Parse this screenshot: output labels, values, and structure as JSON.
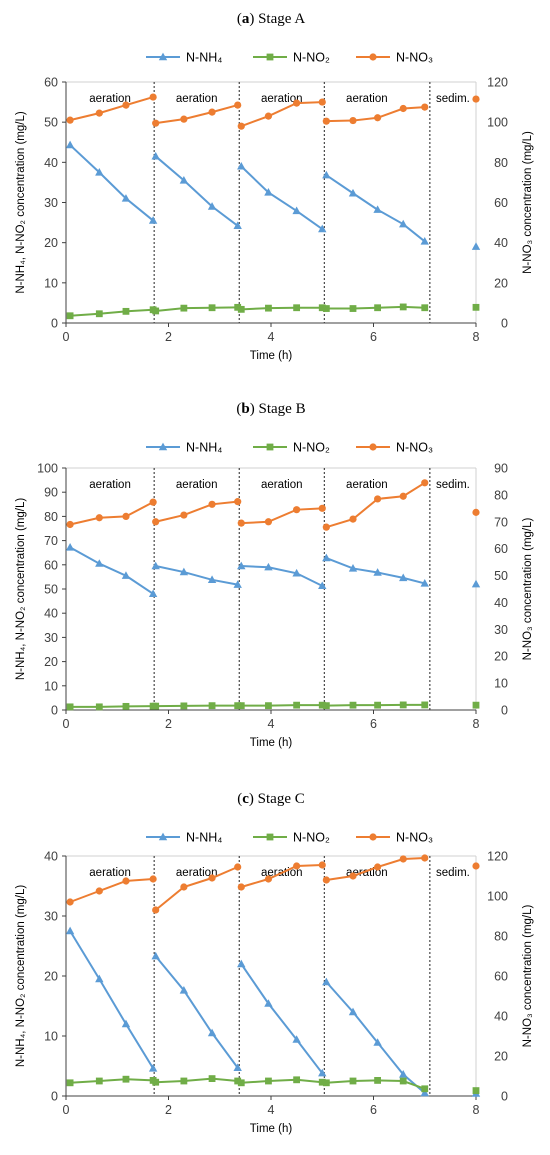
{
  "chart_data": [
    {
      "type": "line",
      "panel_label": "a",
      "title": "Stage A",
      "xlabel": "Time (h)",
      "ylabel": "N-NH₄, N-NO₂ concentration (mg/L)",
      "y2label": "N-NO₃ concentration (mg/L)",
      "xlim": [
        0,
        8
      ],
      "xticks": [
        0,
        2,
        4,
        6,
        8
      ],
      "ylim": [
        0,
        60
      ],
      "yticks": [
        0,
        10,
        20,
        30,
        40,
        50,
        60
      ],
      "y2lim": [
        0,
        120
      ],
      "y2ticks": [
        0,
        20,
        40,
        60,
        80,
        100,
        120
      ],
      "grid": false,
      "legend": "top",
      "phase_boundaries": [
        1.72,
        3.38,
        5.04,
        7.1
      ],
      "phase_labels": [
        {
          "text": "aeration",
          "x": 0.86
        },
        {
          "text": "aeration",
          "x": 2.55
        },
        {
          "text": "aeration",
          "x": 4.21
        },
        {
          "text": "aeration",
          "x": 5.87
        },
        {
          "text": "sedim.",
          "x": 7.55
        }
      ],
      "series": [
        {
          "name": "N-NH₄",
          "axis": "left",
          "color": "#5b9bd5",
          "marker": "triangle",
          "segments": [
            [
              [
                0.08,
                44.3
              ],
              [
                0.65,
                37.5
              ],
              [
                1.17,
                31.0
              ],
              [
                1.7,
                25.5
              ]
            ],
            [
              [
                1.75,
                41.5
              ],
              [
                2.3,
                35.5
              ],
              [
                2.85,
                29.0
              ],
              [
                3.35,
                24.2
              ]
            ],
            [
              [
                3.42,
                39.0
              ],
              [
                3.95,
                32.5
              ],
              [
                4.5,
                27.9
              ],
              [
                5.0,
                23.4
              ]
            ],
            [
              [
                5.08,
                36.8
              ],
              [
                5.6,
                32.3
              ],
              [
                6.08,
                28.2
              ],
              [
                6.58,
                24.6
              ],
              [
                7.0,
                20.3
              ]
            ],
            [
              [
                8.0,
                19.0
              ]
            ]
          ]
        },
        {
          "name": "N-NO₂",
          "axis": "left",
          "color": "#70ad47",
          "marker": "square",
          "segments": [
            [
              [
                0.08,
                1.8
              ],
              [
                0.65,
                2.3
              ],
              [
                1.17,
                2.9
              ],
              [
                1.7,
                3.3
              ]
            ],
            [
              [
                1.75,
                3.0
              ],
              [
                2.3,
                3.7
              ],
              [
                2.85,
                3.8
              ],
              [
                3.35,
                3.9
              ]
            ],
            [
              [
                3.42,
                3.4
              ],
              [
                3.95,
                3.7
              ],
              [
                4.5,
                3.8
              ],
              [
                5.0,
                3.8
              ]
            ],
            [
              [
                5.08,
                3.6
              ],
              [
                5.6,
                3.6
              ],
              [
                6.08,
                3.8
              ],
              [
                6.58,
                4.0
              ],
              [
                7.0,
                3.8
              ]
            ],
            [
              [
                8.0,
                3.9
              ]
            ]
          ]
        },
        {
          "name": "N-NO₃",
          "axis": "right",
          "color": "#ed7d31",
          "marker": "circle",
          "segments": [
            [
              [
                0.08,
                101
              ],
              [
                0.65,
                104.5
              ],
              [
                1.17,
                108.5
              ],
              [
                1.7,
                112.5
              ]
            ],
            [
              [
                1.75,
                99.5
              ],
              [
                2.3,
                101.5
              ],
              [
                2.85,
                105
              ],
              [
                3.35,
                108.5
              ]
            ],
            [
              [
                3.42,
                98
              ],
              [
                3.95,
                103
              ],
              [
                4.5,
                109.5
              ],
              [
                5.0,
                110
              ]
            ],
            [
              [
                5.08,
                100.5
              ],
              [
                5.6,
                100.8
              ],
              [
                6.08,
                102.2
              ],
              [
                6.58,
                106.8
              ],
              [
                7.0,
                107.5
              ]
            ],
            [
              [
                8.0,
                111.5
              ]
            ]
          ]
        }
      ]
    },
    {
      "type": "line",
      "panel_label": "b",
      "title": "Stage B",
      "xlabel": "Time (h)",
      "ylabel": "N-NH₄, N-NO₂ concentration (mg/L)",
      "y2label": "N-NO₃ concentration (mg/L)",
      "xlim": [
        0,
        8
      ],
      "xticks": [
        0,
        2,
        4,
        6,
        8
      ],
      "ylim": [
        0,
        100
      ],
      "yticks": [
        0,
        10,
        20,
        30,
        40,
        50,
        60,
        70,
        80,
        90,
        100
      ],
      "y2lim": [
        0,
        90
      ],
      "y2ticks": [
        0,
        10,
        20,
        30,
        40,
        50,
        60,
        70,
        80,
        90
      ],
      "grid": false,
      "legend": "top",
      "phase_boundaries": [
        1.72,
        3.38,
        5.04,
        7.1
      ],
      "phase_labels": [
        {
          "text": "aeration",
          "x": 0.86
        },
        {
          "text": "aeration",
          "x": 2.55
        },
        {
          "text": "aeration",
          "x": 4.21
        },
        {
          "text": "aeration",
          "x": 5.87
        },
        {
          "text": "sedim.",
          "x": 7.55
        }
      ],
      "series": [
        {
          "name": "N-NH₄",
          "axis": "left",
          "color": "#5b9bd5",
          "marker": "triangle",
          "segments": [
            [
              [
                0.08,
                67.2
              ],
              [
                0.65,
                60.5
              ],
              [
                1.17,
                55.5
              ],
              [
                1.7,
                48.0
              ]
            ],
            [
              [
                1.75,
                59.5
              ],
              [
                2.3,
                57.0
              ],
              [
                2.85,
                53.8
              ],
              [
                3.35,
                51.8
              ]
            ],
            [
              [
                3.42,
                59.5
              ],
              [
                3.95,
                59.0
              ],
              [
                4.5,
                56.5
              ],
              [
                5.0,
                51.3
              ]
            ],
            [
              [
                5.08,
                62.8
              ],
              [
                5.6,
                58.5
              ],
              [
                6.08,
                56.8
              ],
              [
                6.58,
                54.6
              ],
              [
                7.0,
                52.3
              ]
            ],
            [
              [
                8.0,
                52.0
              ]
            ]
          ]
        },
        {
          "name": "N-NO₂",
          "axis": "left",
          "color": "#70ad47",
          "marker": "square",
          "segments": [
            [
              [
                0.08,
                1.3
              ],
              [
                0.65,
                1.3
              ],
              [
                1.17,
                1.5
              ],
              [
                1.7,
                1.6
              ]
            ],
            [
              [
                1.75,
                1.6
              ],
              [
                2.3,
                1.7
              ],
              [
                2.85,
                1.8
              ],
              [
                3.35,
                1.8
              ]
            ],
            [
              [
                3.42,
                1.8
              ],
              [
                3.95,
                1.8
              ],
              [
                4.5,
                2.0
              ],
              [
                5.0,
                2.0
              ]
            ],
            [
              [
                5.08,
                1.8
              ],
              [
                5.6,
                2.0
              ],
              [
                6.08,
                2.0
              ],
              [
                6.58,
                2.1
              ],
              [
                7.0,
                2.1
              ]
            ],
            [
              [
                8.0,
                2.0
              ]
            ]
          ]
        },
        {
          "name": "N-NO₃",
          "axis": "right",
          "color": "#ed7d31",
          "marker": "circle",
          "segments": [
            [
              [
                0.08,
                69
              ],
              [
                0.65,
                71.5
              ],
              [
                1.17,
                72
              ],
              [
                1.7,
                77.3
              ]
            ],
            [
              [
                1.75,
                70
              ],
              [
                2.3,
                72.5
              ],
              [
                2.85,
                76.5
              ],
              [
                3.35,
                77.5
              ]
            ],
            [
              [
                3.42,
                69.5
              ],
              [
                3.95,
                70
              ],
              [
                4.5,
                74.5
              ],
              [
                5.0,
                75
              ]
            ],
            [
              [
                5.08,
                68
              ],
              [
                5.6,
                71
              ],
              [
                6.08,
                78.5
              ],
              [
                6.58,
                79.5
              ],
              [
                7.0,
                84.5
              ]
            ],
            [
              [
                8.0,
                73.5
              ]
            ]
          ]
        }
      ]
    },
    {
      "type": "line",
      "panel_label": "c",
      "title": "Stage C",
      "xlabel": "Time (h)",
      "ylabel": "N-NH₄, N-NO₂ concentration (mg/L)",
      "y2label": "N-NO₃ concentration (mg/L)",
      "xlim": [
        0,
        8
      ],
      "xticks": [
        0,
        2,
        4,
        6,
        8
      ],
      "ylim": [
        0,
        40
      ],
      "yticks": [
        0,
        10,
        20,
        30,
        40
      ],
      "y2lim": [
        0,
        120
      ],
      "y2ticks": [
        0,
        20,
        40,
        60,
        80,
        100,
        120
      ],
      "grid": false,
      "legend": "top",
      "phase_boundaries": [
        1.72,
        3.38,
        5.04,
        7.1
      ],
      "phase_labels": [
        {
          "text": "aeration",
          "x": 0.86
        },
        {
          "text": "aeration",
          "x": 2.55
        },
        {
          "text": "aeration",
          "x": 4.21
        },
        {
          "text": "aeration",
          "x": 5.87
        },
        {
          "text": "sedim.",
          "x": 7.55
        }
      ],
      "series": [
        {
          "name": "N-NH₄",
          "axis": "left",
          "color": "#5b9bd5",
          "marker": "triangle",
          "segments": [
            [
              [
                0.08,
                27.5
              ],
              [
                0.65,
                19.5
              ],
              [
                1.17,
                12.0
              ],
              [
                1.7,
                4.6
              ]
            ],
            [
              [
                1.75,
                23.3
              ],
              [
                2.3,
                17.6
              ],
              [
                2.85,
                10.5
              ],
              [
                3.35,
                4.7
              ]
            ],
            [
              [
                3.42,
                22.0
              ],
              [
                3.95,
                15.4
              ],
              [
                4.5,
                9.4
              ],
              [
                5.0,
                3.8
              ]
            ],
            [
              [
                5.08,
                19.0
              ],
              [
                5.6,
                14.0
              ],
              [
                6.08,
                8.9
              ],
              [
                6.58,
                3.6
              ],
              [
                7.0,
                0.5
              ]
            ],
            [
              [
                8.0,
                0.4
              ]
            ]
          ]
        },
        {
          "name": "N-NO₂",
          "axis": "left",
          "color": "#70ad47",
          "marker": "square",
          "segments": [
            [
              [
                0.08,
                2.2
              ],
              [
                0.65,
                2.5
              ],
              [
                1.17,
                2.8
              ],
              [
                1.7,
                2.6
              ]
            ],
            [
              [
                1.75,
                2.3
              ],
              [
                2.3,
                2.5
              ],
              [
                2.85,
                2.9
              ],
              [
                3.35,
                2.5
              ]
            ],
            [
              [
                3.42,
                2.2
              ],
              [
                3.95,
                2.5
              ],
              [
                4.5,
                2.7
              ],
              [
                5.0,
                2.3
              ]
            ],
            [
              [
                5.08,
                2.2
              ],
              [
                5.6,
                2.5
              ],
              [
                6.08,
                2.6
              ],
              [
                6.58,
                2.5
              ],
              [
                7.0,
                1.2
              ]
            ],
            [
              [
                8.0,
                0.9
              ]
            ]
          ]
        },
        {
          "name": "N-NO₃",
          "axis": "right",
          "color": "#ed7d31",
          "marker": "circle",
          "segments": [
            [
              [
                0.08,
                97
              ],
              [
                0.65,
                102.5
              ],
              [
                1.17,
                107.5
              ],
              [
                1.7,
                108.5
              ]
            ],
            [
              [
                1.75,
                93
              ],
              [
                2.3,
                104.5
              ],
              [
                2.85,
                109
              ],
              [
                3.35,
                114.5
              ]
            ],
            [
              [
                3.42,
                104.5
              ],
              [
                3.95,
                108.5
              ],
              [
                4.5,
                115
              ],
              [
                5.0,
                115.5
              ]
            ],
            [
              [
                5.08,
                108
              ],
              [
                5.6,
                110
              ],
              [
                6.08,
                114.5
              ],
              [
                6.58,
                118.5
              ],
              [
                7.0,
                119
              ]
            ],
            [
              [
                8.0,
                115
              ]
            ]
          ]
        }
      ]
    }
  ]
}
